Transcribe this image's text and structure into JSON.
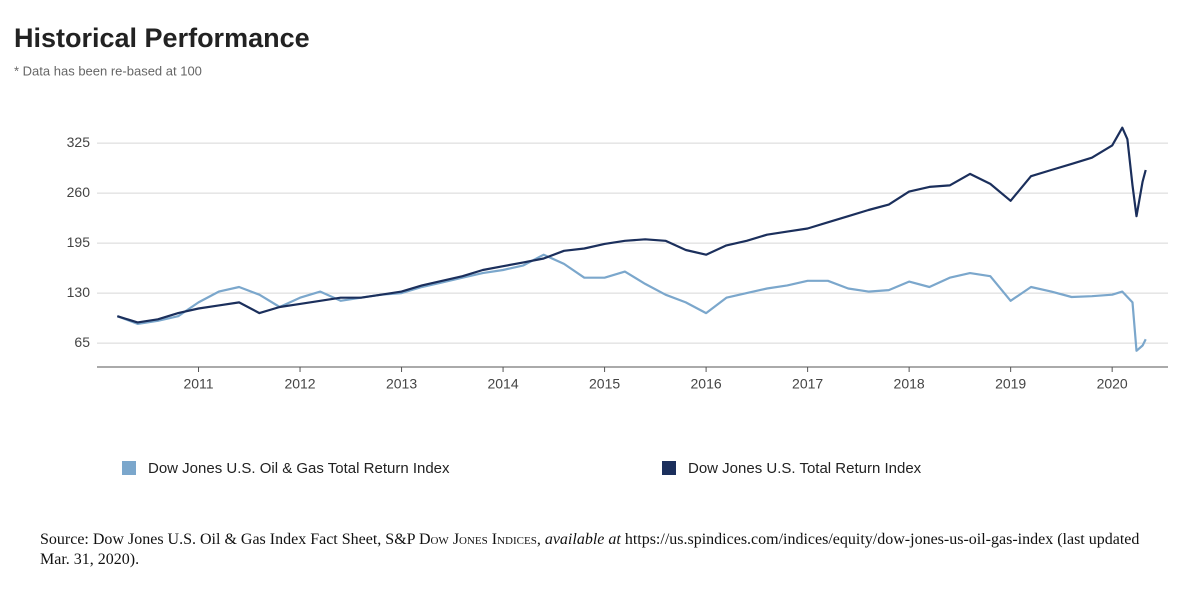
{
  "chart_data": {
    "type": "line",
    "title": "Historical Performance",
    "subtitle": "* Data has been re-based at 100",
    "x": [
      2010.2,
      2010.4,
      2010.6,
      2010.8,
      2011.0,
      2011.2,
      2011.4,
      2011.6,
      2011.8,
      2012.0,
      2012.2,
      2012.4,
      2012.6,
      2012.8,
      2013.0,
      2013.2,
      2013.4,
      2013.6,
      2013.8,
      2014.0,
      2014.2,
      2014.4,
      2014.6,
      2014.8,
      2015.0,
      2015.2,
      2015.4,
      2015.6,
      2015.8,
      2016.0,
      2016.2,
      2016.4,
      2016.6,
      2016.8,
      2017.0,
      2017.2,
      2017.4,
      2017.6,
      2017.8,
      2018.0,
      2018.2,
      2018.4,
      2018.6,
      2018.8,
      2019.0,
      2019.2,
      2019.4,
      2019.6,
      2019.8,
      2020.0,
      2020.1,
      2020.15,
      2020.2,
      2020.24,
      2020.3,
      2020.33
    ],
    "series": [
      {
        "name": "Dow Jones U.S. Oil & Gas Total Return Index",
        "color": "#7ba7cc",
        "values": [
          100,
          90,
          94,
          100,
          118,
          132,
          138,
          128,
          112,
          124,
          132,
          120,
          124,
          128,
          130,
          138,
          144,
          150,
          156,
          160,
          166,
          180,
          168,
          150,
          150,
          158,
          142,
          128,
          118,
          104,
          124,
          130,
          136,
          140,
          146,
          146,
          136,
          132,
          134,
          145,
          138,
          150,
          156,
          152,
          120,
          138,
          132,
          125,
          126,
          128,
          132,
          125,
          118,
          55,
          62,
          70
        ]
      },
      {
        "name": "Dow Jones U.S. Total Return Index",
        "color": "#1b2f5c",
        "values": [
          100,
          92,
          96,
          104,
          110,
          114,
          118,
          104,
          112,
          116,
          120,
          124,
          124,
          128,
          132,
          140,
          146,
          152,
          160,
          165,
          170,
          175,
          185,
          188,
          194,
          198,
          200,
          198,
          186,
          180,
          192,
          198,
          206,
          210,
          214,
          222,
          230,
          238,
          245,
          262,
          268,
          270,
          285,
          272,
          250,
          282,
          290,
          298,
          306,
          322,
          345,
          330,
          270,
          230,
          275,
          290
        ]
      }
    ],
    "xlim": [
      2010,
      2020.55
    ],
    "xticks": [
      2011,
      2012,
      2013,
      2014,
      2015,
      2016,
      2017,
      2018,
      2019,
      2020
    ],
    "ylim": [
      34,
      368
    ],
    "yticks": [
      65,
      130,
      195,
      260,
      325
    ],
    "grid": true,
    "legend": "bottom",
    "source": {
      "text": "Source: Dow Jones U.S. Oil & Gas Index Fact Sheet, S&P ",
      "publisher": "Dow Jones Indices",
      "italic": "available at",
      "rest": " https://us.spindices.com/indices/equity/dow-jones-us-oil-gas-index (last updated Mar. 31, 2020)."
    }
  }
}
